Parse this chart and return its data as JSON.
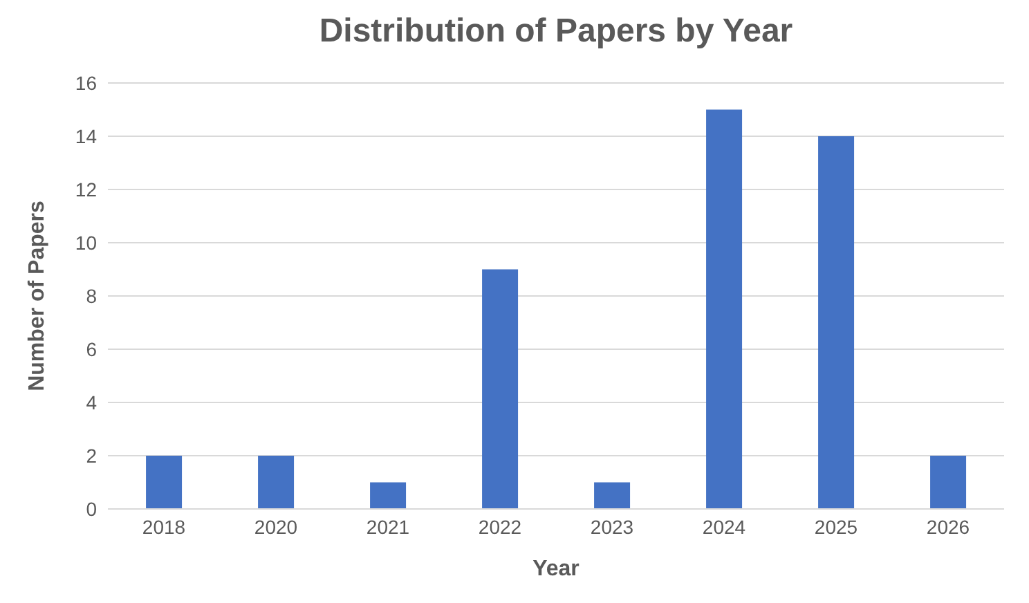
{
  "chart_data": {
    "type": "bar",
    "title": "Distribution of Papers by Year",
    "xlabel": "Year",
    "ylabel": "Number of Papers",
    "categories": [
      "2018",
      "2020",
      "2021",
      "2022",
      "2023",
      "2024",
      "2025",
      "2026"
    ],
    "values": [
      2,
      2,
      1,
      9,
      1,
      15,
      14,
      2
    ],
    "color": "#4472c4",
    "ylim": [
      0,
      16
    ],
    "yticks": [
      0,
      2,
      4,
      6,
      8,
      10,
      12,
      14,
      16
    ],
    "grid": "y"
  }
}
